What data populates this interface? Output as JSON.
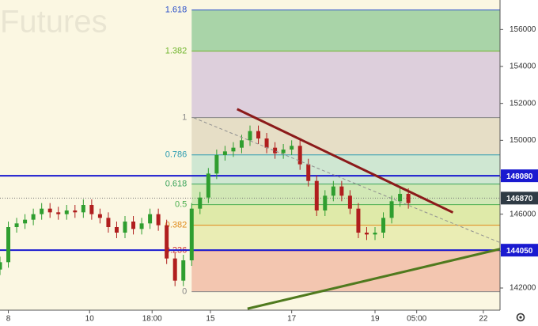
{
  "chart_data": {
    "type": "candlestick",
    "title": "Futures",
    "x": [
      0,
      2,
      4,
      6,
      8,
      10,
      12,
      14,
      16,
      18,
      20,
      22,
      24,
      26,
      28,
      30,
      32,
      34,
      36,
      38,
      40,
      42,
      44,
      46,
      48,
      50,
      52,
      54,
      56,
      58,
      60,
      62,
      64,
      66,
      68,
      70,
      72,
      74,
      76,
      78,
      80,
      82,
      84,
      86,
      88,
      90,
      92,
      94,
      96,
      98
    ],
    "open": [
      143000,
      143400,
      145300,
      145500,
      145700,
      146000,
      146300,
      146100,
      146000,
      146200,
      146100,
      146500,
      146000,
      145800,
      145300,
      145000,
      145600,
      145200,
      145500,
      146000,
      145400,
      143600,
      142400,
      143500,
      146300,
      146900,
      148200,
      149200,
      149400,
      149600,
      150000,
      150500,
      150100,
      149600,
      149300,
      149500,
      149700,
      148700,
      147800,
      146200,
      147000,
      147500,
      147000,
      146300,
      145000,
      144900,
      145000,
      145800,
      146700,
      147100
    ],
    "high": [
      143700,
      145600,
      145800,
      146000,
      146300,
      146600,
      146600,
      146400,
      146500,
      146500,
      146800,
      146800,
      146300,
      146100,
      145600,
      145900,
      145900,
      145800,
      146300,
      146300,
      145700,
      143900,
      143800,
      146600,
      147200,
      148500,
      149500,
      149700,
      149900,
      150300,
      150800,
      150800,
      150400,
      149900,
      149800,
      150000,
      150000,
      149000,
      148100,
      147300,
      147800,
      147800,
      147300,
      146600,
      145300,
      145300,
      146100,
      147000,
      147400,
      147400
    ],
    "low": [
      142700,
      143100,
      145000,
      145200,
      145400,
      145700,
      145800,
      145700,
      145700,
      145800,
      145800,
      145700,
      145500,
      145000,
      144700,
      144700,
      144900,
      144900,
      145200,
      145100,
      143300,
      142100,
      142100,
      143200,
      146000,
      146600,
      147900,
      148900,
      149100,
      149300,
      149700,
      149800,
      149300,
      149000,
      149000,
      149200,
      148400,
      147500,
      145900,
      145900,
      146700,
      146700,
      146000,
      144700,
      144600,
      144600,
      144700,
      145500,
      146400,
      146300
    ],
    "close": [
      143400,
      145300,
      145500,
      145700,
      146000,
      146300,
      146100,
      146000,
      146200,
      146100,
      146500,
      146000,
      145800,
      145300,
      145000,
      145600,
      145200,
      145500,
      146000,
      145400,
      143600,
      142400,
      143500,
      146300,
      146900,
      148200,
      149200,
      149400,
      149600,
      150000,
      150500,
      150100,
      149600,
      149300,
      149500,
      149700,
      148700,
      147800,
      146200,
      147000,
      147500,
      147000,
      146300,
      145000,
      144900,
      145000,
      145800,
      146700,
      147100,
      146600
    ],
    "up_color": "#2f9e2f",
    "down_color": "#b01e1e",
    "xlim": [
      0,
      120
    ],
    "ylim": [
      140800,
      157600
    ],
    "yticks": [
      142000,
      144000,
      146000,
      148000,
      150000,
      152000,
      154000,
      156000
    ],
    "xticks": [
      {
        "value": 2,
        "label": "8"
      },
      {
        "value": 21.5,
        "label": "10"
      },
      {
        "value": 36.5,
        "label": "18:00"
      },
      {
        "value": 50.5,
        "label": "15"
      },
      {
        "value": 70,
        "label": "17"
      },
      {
        "value": 90,
        "label": "19"
      },
      {
        "value": 100,
        "label": "05:00"
      },
      {
        "value": 116,
        "label": "22"
      }
    ],
    "fib": {
      "low": 141800,
      "high": 151230,
      "x": 46,
      "levels": [
        0,
        0.236,
        0.382,
        0.5,
        0.618,
        0.786,
        1,
        1.382,
        1.618
      ],
      "level_colors": [
        "#888888",
        "#d03030",
        "#e08a1a",
        "#4caf50",
        "#3aa35a",
        "#2a9bb0",
        "#888888",
        "#6fb52c",
        "#2a4fc9"
      ],
      "band_colors": [
        "#f3c6b0",
        "#eaedb4",
        "#dfeaa9",
        "#d2e8b6",
        "#cfe7d2",
        "#e6dec6",
        "#ddcfdc",
        "#a9d4a8"
      ]
    },
    "price_lines": [
      {
        "value": 148080,
        "color": "#1a1ad0"
      },
      {
        "value": 144050,
        "color": "#1a1ad0"
      }
    ],
    "last_price": {
      "value": 146870,
      "color": "#2f3b45"
    },
    "trend_lines": [
      {
        "x": [
          56.9,
          108.7
        ],
        "y": [
          151690,
          146090
        ],
        "color": "#8b1a1a",
        "width": 3,
        "dash": false
      },
      {
        "x": [
          46.5,
          120
        ],
        "y": [
          151220,
          144460
        ],
        "color": "#909090",
        "width": 1,
        "dash": true
      },
      {
        "x": [
          59.4,
          120
        ],
        "y": [
          140880,
          144110
        ],
        "color": "#4f7a1e",
        "width": 3,
        "dash": false
      }
    ]
  }
}
